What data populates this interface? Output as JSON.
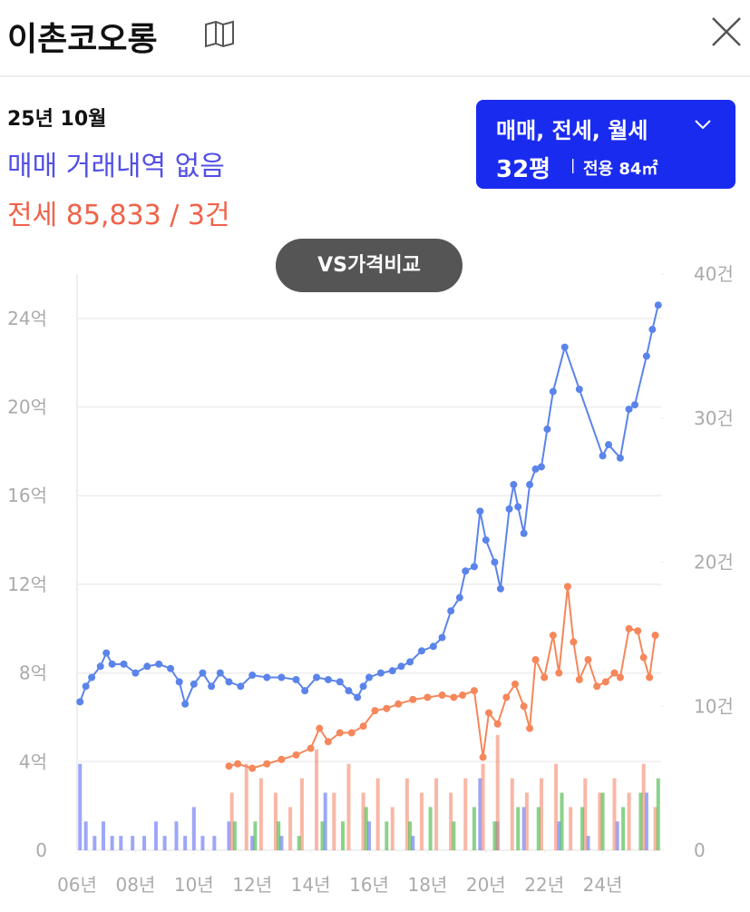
{
  "header": {
    "title": "이촌코오롱"
  },
  "summary": {
    "month": "25년 10월",
    "sale": "매매 거래내역 없음",
    "jeonse": "전세 85,833 / 3건"
  },
  "selector": {
    "types": "매매, 전세, 월세",
    "size": "32평",
    "divider": "|",
    "area": "전용 84㎡"
  },
  "compare_button": "VS가격비교",
  "chart_data": {
    "type": "combo",
    "xlim": [
      2006,
      2026
    ],
    "ylim": [
      0,
      26
    ],
    "y2lim": [
      0,
      40
    ],
    "grid": true,
    "xticks": [
      {
        "value": 2006,
        "label": "06년"
      },
      {
        "value": 2008,
        "label": "08년"
      },
      {
        "value": 2010,
        "label": "10년"
      },
      {
        "value": 2012,
        "label": "12년"
      },
      {
        "value": 2014,
        "label": "14년"
      },
      {
        "value": 2016,
        "label": "16년"
      },
      {
        "value": 2018,
        "label": "18년"
      },
      {
        "value": 2020,
        "label": "20년"
      },
      {
        "value": 2022,
        "label": "22년"
      },
      {
        "value": 2024,
        "label": "24년"
      }
    ],
    "yticks": [
      0,
      {
        "value": 4,
        "label": "4억"
      },
      {
        "value": 8,
        "label": "8억"
      },
      {
        "value": 12,
        "label": "12억"
      },
      {
        "value": 16,
        "label": "16억"
      },
      {
        "value": 20,
        "label": "20억"
      },
      {
        "value": 24,
        "label": "24억"
      }
    ],
    "y2ticks": [
      0,
      {
        "value": 10,
        "label": "10건"
      },
      {
        "value": 20,
        "label": "20건"
      },
      {
        "value": 30,
        "label": "30건"
      },
      {
        "value": 40,
        "label": "40건"
      }
    ],
    "series": [
      {
        "type": "bar",
        "axis": "y2",
        "color": "#5b6cf0",
        "x": [
          2006.1,
          2006.3,
          2006.6,
          2006.9,
          2007.2,
          2007.5,
          2007.9,
          2008.3,
          2008.7,
          2009.0,
          2009.4,
          2009.7,
          2010.0,
          2010.3,
          2010.7,
          2011.2,
          2012.0,
          2013.0,
          2014.5,
          2016.0,
          2017.5,
          2019.8,
          2020.4,
          2021.3,
          2022.5,
          2023.5,
          2024.5,
          2025.5
        ],
        "values": [
          6,
          2,
          1,
          2,
          1,
          1,
          1,
          1,
          2,
          1,
          2,
          1,
          3,
          1,
          1,
          2,
          1,
          1,
          4,
          2,
          1,
          5,
          2,
          3,
          2,
          1,
          2,
          4
        ]
      },
      {
        "type": "bar",
        "axis": "y2",
        "color": "#f5876a",
        "x": [
          2011.3,
          2011.8,
          2012.3,
          2012.8,
          2013.3,
          2013.7,
          2014.2,
          2014.8,
          2015.3,
          2015.8,
          2016.3,
          2016.8,
          2017.3,
          2017.8,
          2018.3,
          2018.8,
          2019.3,
          2019.9,
          2020.4,
          2020.9,
          2021.4,
          2021.9,
          2022.4,
          2022.9,
          2023.4,
          2023.9,
          2024.4,
          2024.9,
          2025.4,
          2025.8
        ],
        "values": [
          4,
          6,
          5,
          4,
          3,
          5,
          7,
          4,
          6,
          4,
          5,
          3,
          5,
          4,
          5,
          4,
          5,
          6,
          8,
          5,
          4,
          5,
          6,
          3,
          5,
          4,
          5,
          4,
          6,
          3
        ]
      },
      {
        "type": "bar",
        "axis": "y2",
        "color": "#3cb43c",
        "x": [
          2011.4,
          2012.1,
          2012.9,
          2013.6,
          2014.4,
          2015.1,
          2015.9,
          2016.6,
          2017.4,
          2018.1,
          2018.9,
          2019.6,
          2020.3,
          2021.1,
          2021.8,
          2022.6,
          2023.3,
          2024.0,
          2024.7,
          2025.3,
          2025.9
        ],
        "values": [
          2,
          2,
          2,
          1,
          2,
          2,
          3,
          2,
          2,
          3,
          2,
          3,
          2,
          3,
          3,
          4,
          3,
          4,
          3,
          4,
          5
        ]
      },
      {
        "type": "line",
        "axis": "y",
        "color": "#5b84ea",
        "x": [
          2006.1,
          2006.3,
          2006.5,
          2006.8,
          2007.0,
          2007.2,
          2007.6,
          2008.0,
          2008.4,
          2008.8,
          2009.2,
          2009.5,
          2009.7,
          2010.0,
          2010.3,
          2010.6,
          2010.9,
          2011.2,
          2011.6,
          2012.0,
          2012.5,
          2013.0,
          2013.5,
          2013.8,
          2014.2,
          2014.6,
          2015.0,
          2015.3,
          2015.6,
          2015.8,
          2016.0,
          2016.4,
          2016.8,
          2017.1,
          2017.4,
          2017.8,
          2018.2,
          2018.5,
          2018.8,
          2019.1,
          2019.3,
          2019.6,
          2019.8,
          2020.0,
          2020.3,
          2020.5,
          2020.8,
          2020.95,
          2021.1,
          2021.3,
          2021.5,
          2021.7,
          2021.9,
          2022.1,
          2022.3,
          2022.7,
          2023.2,
          2024.0,
          2024.2,
          2024.6,
          2024.9,
          2025.1,
          2025.5,
          2025.7,
          2025.9
        ],
        "values": [
          6.7,
          7.4,
          7.8,
          8.3,
          8.9,
          8.4,
          8.4,
          8.0,
          8.3,
          8.4,
          8.2,
          7.6,
          6.6,
          7.5,
          8.0,
          7.4,
          8.0,
          7.6,
          7.4,
          7.9,
          7.8,
          7.8,
          7.7,
          7.2,
          7.8,
          7.7,
          7.6,
          7.2,
          6.9,
          7.4,
          7.8,
          8.0,
          8.1,
          8.3,
          8.5,
          9.0,
          9.2,
          9.6,
          10.8,
          11.4,
          12.6,
          12.8,
          15.3,
          14.0,
          13.0,
          11.8,
          15.4,
          16.5,
          15.5,
          14.3,
          16.5,
          17.2,
          17.3,
          19.0,
          20.7,
          22.7,
          20.8,
          17.8,
          18.3,
          17.7,
          19.9,
          20.1,
          22.3,
          23.5,
          24.6
        ]
      },
      {
        "type": "line",
        "axis": "y",
        "color": "#f5875a",
        "x": [
          2011.2,
          2011.5,
          2012.0,
          2012.5,
          2013.0,
          2013.5,
          2014.0,
          2014.3,
          2014.6,
          2015.0,
          2015.4,
          2015.8,
          2016.2,
          2016.6,
          2017.0,
          2017.5,
          2018.0,
          2018.5,
          2018.9,
          2019.2,
          2019.6,
          2019.9,
          2020.1,
          2020.4,
          2020.7,
          2021.0,
          2021.3,
          2021.5,
          2021.7,
          2022.0,
          2022.3,
          2022.5,
          2022.8,
          2023.0,
          2023.2,
          2023.5,
          2023.8,
          2024.1,
          2024.4,
          2024.6,
          2024.9,
          2025.2,
          2025.4,
          2025.6,
          2025.8
        ],
        "values": [
          3.8,
          3.9,
          3.7,
          3.9,
          4.1,
          4.3,
          4.6,
          5.5,
          4.9,
          5.3,
          5.3,
          5.6,
          6.3,
          6.4,
          6.6,
          6.8,
          6.9,
          7.0,
          6.9,
          7.0,
          7.2,
          4.2,
          6.2,
          5.7,
          6.9,
          7.5,
          6.5,
          5.5,
          8.6,
          7.8,
          9.7,
          8.0,
          11.9,
          9.4,
          7.7,
          8.6,
          7.4,
          7.6,
          8.0,
          7.8,
          10.0,
          9.9,
          8.7,
          7.8,
          9.7
        ]
      }
    ]
  }
}
